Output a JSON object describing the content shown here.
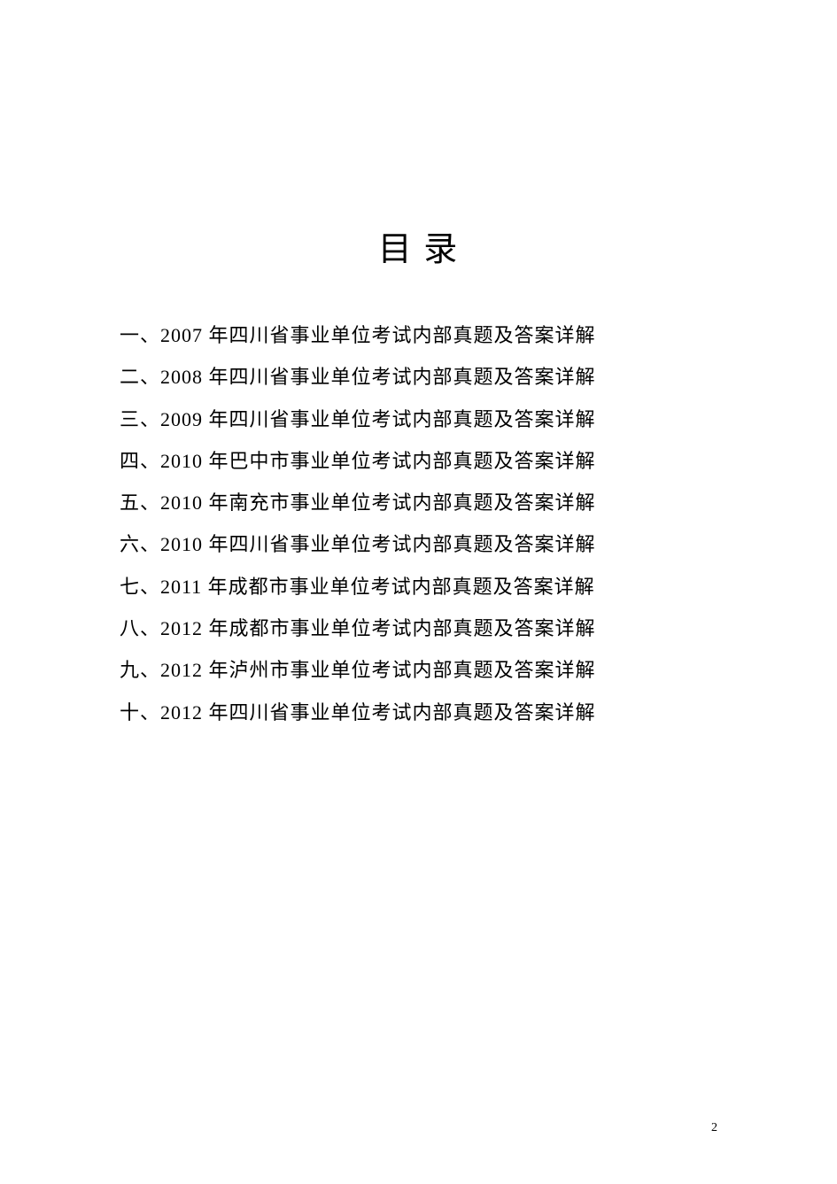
{
  "title": "目 录",
  "toc": {
    "items": [
      "一、2007 年四川省事业单位考试内部真题及答案详解",
      "二、2008 年四川省事业单位考试内部真题及答案详解",
      "三、2009 年四川省事业单位考试内部真题及答案详解",
      "四、2010 年巴中市事业单位考试内部真题及答案详解",
      "五、2010 年南充市事业单位考试内部真题及答案详解",
      "六、2010 年四川省事业单位考试内部真题及答案详解",
      "七、2011 年成都市事业单位考试内部真题及答案详解",
      "八、2012 年成都市事业单位考试内部真题及答案详解",
      "九、2012 年泸州市事业单位考试内部真题及答案详解",
      "十、2012 年四川省事业单位考试内部真题及答案详解"
    ]
  },
  "page_number": "2",
  "styling": {
    "background_color": "#ffffff",
    "text_color": "#000000",
    "title_fontsize": 38,
    "item_fontsize": 22,
    "page_number_fontsize": 14,
    "line_height": 2.15,
    "font_family": "SimSun"
  }
}
